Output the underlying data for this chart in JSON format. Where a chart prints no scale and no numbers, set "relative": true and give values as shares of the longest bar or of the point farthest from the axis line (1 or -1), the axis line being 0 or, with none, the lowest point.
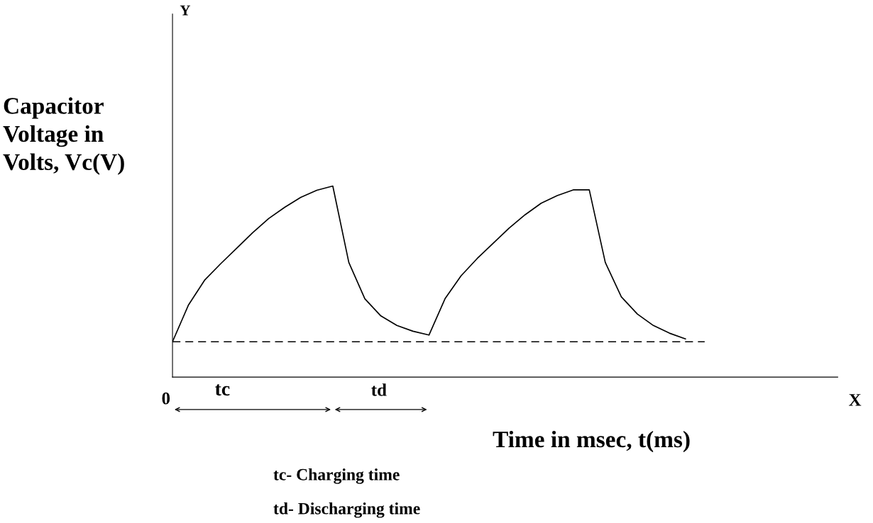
{
  "chart_data": {
    "type": "line",
    "relative": true,
    "categories": [
      null,
      null,
      null,
      null,
      null,
      null,
      null,
      null,
      null,
      null,
      null,
      null,
      null,
      null,
      null,
      null,
      null,
      null,
      null,
      null,
      null,
      null,
      null,
      null,
      null,
      null,
      null,
      null,
      null,
      null,
      null,
      null,
      null
    ],
    "series": [
      {
        "color": "#000000",
        "values": [
          0.185,
          0.378,
          0.507,
          0.593,
          0.674,
          0.756,
          0.83,
          0.889,
          0.941,
          0.978,
          1.0,
          0.6,
          0.41,
          0.32,
          0.27,
          0.24,
          0.22,
          0.41,
          0.53,
          0.62,
          0.7,
          0.78,
          0.85,
          0.91,
          0.95,
          0.98,
          0.98,
          0.6,
          0.42,
          0.33,
          0.27,
          0.23,
          0.2
        ]
      }
    ],
    "ylabel": "Capacitor\nVoltage in\nVolts, Vc(V)",
    "xlabel": "Time in msec, t(ms)",
    "ref_lines": [
      {
        "axis": "y",
        "value": 0.185,
        "color": "#000000",
        "line_style": "dashed"
      }
    ],
    "annotations": [
      "Y",
      "X",
      "0",
      "tc",
      "td",
      "tc- Charging time",
      "td- Discharging time"
    ],
    "legend": false,
    "marker": "none",
    "line_style": "solid"
  }
}
